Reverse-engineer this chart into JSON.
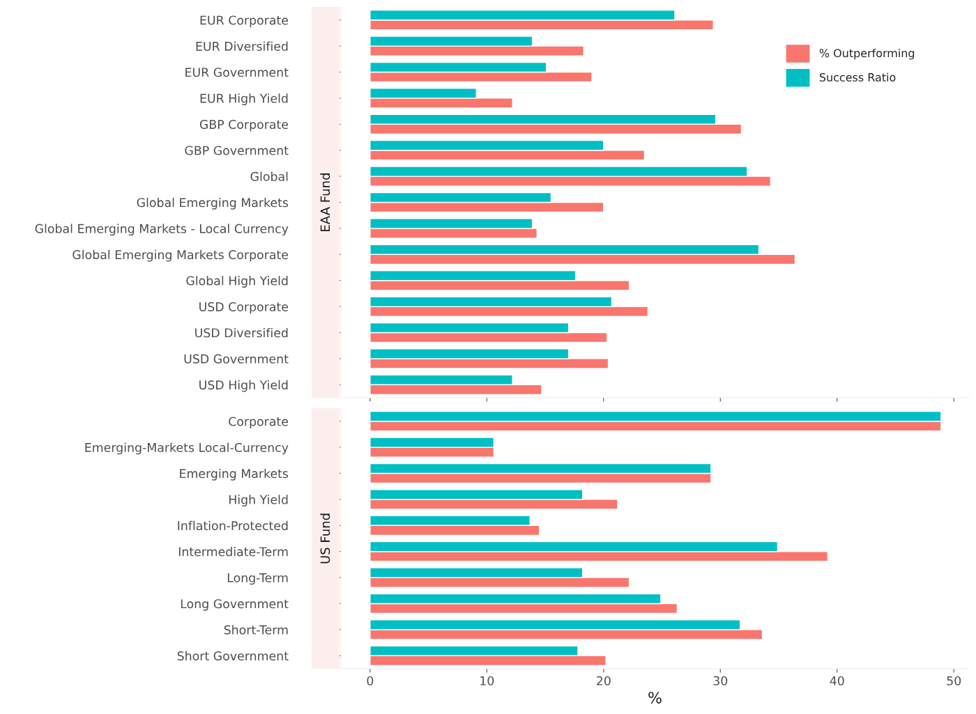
{
  "chart_data": [
    {
      "type": "bar",
      "orientation": "horizontal",
      "title": "EAA Fund",
      "categories": [
        "EUR Corporate",
        "EUR Diversified",
        "EUR Government",
        "EUR High Yield",
        "GBP Corporate",
        "GBP Government",
        "Global",
        "Global Emerging Markets",
        "Global Emerging Markets - Local Currency",
        "Global Emerging Markets Corporate",
        "Global High Yield",
        "USD Corporate",
        "USD Diversified",
        "USD Government",
        "USD High Yield"
      ],
      "series": [
        {
          "name": "% Outperforming",
          "color": "#f8766d",
          "values": [
            29.4,
            18.3,
            19.0,
            12.2,
            31.8,
            23.5,
            34.3,
            20.0,
            14.3,
            36.4,
            22.2,
            23.8,
            20.3,
            20.4,
            14.7
          ]
        },
        {
          "name": "Success Ratio",
          "color": "#00bfc4",
          "values": [
            26.1,
            13.9,
            15.1,
            9.1,
            29.6,
            20.0,
            32.3,
            15.5,
            13.9,
            33.3,
            17.6,
            20.7,
            17.0,
            17.0,
            12.2
          ]
        }
      ],
      "xlim": [
        -2.5,
        51.3
      ],
      "xticks": [
        0,
        10,
        20,
        30,
        40,
        50
      ],
      "tick_labels": "y",
      "legend": "top right",
      "grid": false
    },
    {
      "type": "bar",
      "orientation": "horizontal",
      "title": "US Fund",
      "xlabel": "%",
      "categories": [
        "Corporate",
        "Emerging-Markets Local-Currency",
        "Emerging Markets",
        "High Yield",
        "Inflation-Protected",
        "Intermediate-Term",
        "Long-Term",
        "Long Government",
        "Short-Term",
        "Short Government"
      ],
      "series": [
        {
          "color": "#f8766d",
          "values": [
            48.9,
            10.6,
            29.2,
            21.2,
            14.5,
            39.2,
            22.2,
            26.3,
            33.6,
            20.2
          ]
        },
        {
          "color": "#00bfc4",
          "values": [
            48.9,
            10.6,
            29.2,
            18.2,
            13.7,
            34.9,
            18.2,
            24.9,
            31.7,
            17.8
          ]
        }
      ],
      "xlim": [
        -2.5,
        51.3
      ],
      "xticks": [
        0,
        10,
        20,
        30,
        40,
        50
      ],
      "grid": false
    }
  ]
}
